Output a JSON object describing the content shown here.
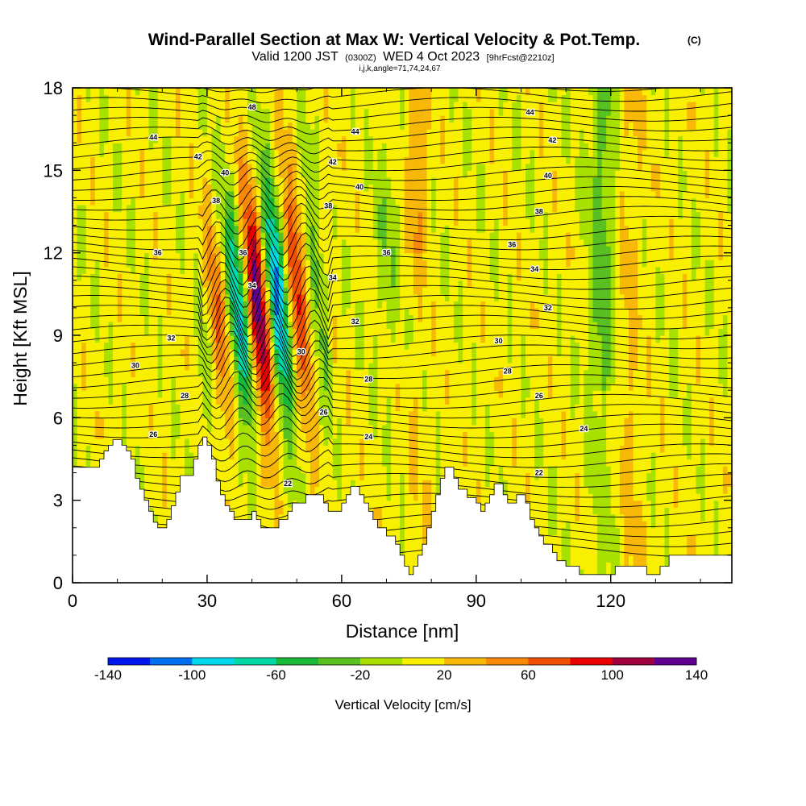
{
  "chart_data": {
    "type": "heatmap",
    "title": "Wind-Parallel Section at Max W: Vertical Velocity & Pot.Temp.",
    "title_mark": "(C)",
    "subtitle_parts": [
      "Valid 1200 JST",
      "(0300Z)",
      "WED 4 Oct 2023",
      "[9hrFcst@2210z]"
    ],
    "subtitle_line2": "i,j,k,angle=71,74,24,67",
    "xlabel": "Distance [nm]",
    "ylabel": "Height [Kft MSL]",
    "xlim": [
      0,
      147
    ],
    "ylim": [
      0,
      18
    ],
    "x_ticks": [
      "0",
      "30",
      "60",
      "90",
      "120"
    ],
    "x_tick_values": [
      0,
      30,
      60,
      90,
      120
    ],
    "y_ticks": [
      "0",
      "3",
      "6",
      "9",
      "12",
      "15",
      "18"
    ],
    "y_tick_values": [
      0,
      3,
      6,
      9,
      12,
      15,
      18
    ],
    "colorbar": {
      "title": "Vertical Velocity [cm/s]",
      "labels": [
        "-140",
        "-100",
        "-60",
        "-20",
        "20",
        "60",
        "100",
        "140"
      ],
      "bins": [
        -140,
        -120,
        -100,
        -80,
        -60,
        -40,
        -20,
        0,
        20,
        40,
        60,
        80,
        100,
        120,
        140
      ],
      "colors": [
        "#0018f0",
        "#0070f0",
        "#00d8f0",
        "#00d8a8",
        "#18b838",
        "#58c020",
        "#a8e000",
        "#f8f000",
        "#f8b808",
        "#f88808",
        "#f05000",
        "#e80000",
        "#a00040",
        "#600090"
      ]
    },
    "theta_labels": [
      {
        "label": "48",
        "x": 40,
        "y": 17.3
      },
      {
        "label": "44",
        "x": 18,
        "y": 16.2
      },
      {
        "label": "44",
        "x": 63,
        "y": 16.4
      },
      {
        "label": "44",
        "x": 102,
        "y": 17.1
      },
      {
        "label": "42",
        "x": 28,
        "y": 15.5
      },
      {
        "label": "42",
        "x": 58,
        "y": 15.3
      },
      {
        "label": "42",
        "x": 107,
        "y": 16.1
      },
      {
        "label": "40",
        "x": 34,
        "y": 14.9
      },
      {
        "label": "40",
        "x": 64,
        "y": 14.4
      },
      {
        "label": "40",
        "x": 106,
        "y": 14.8
      },
      {
        "label": "38",
        "x": 32,
        "y": 13.9
      },
      {
        "label": "38",
        "x": 57,
        "y": 13.7
      },
      {
        "label": "38",
        "x": 104,
        "y": 13.5
      },
      {
        "label": "36",
        "x": 19,
        "y": 12.0
      },
      {
        "label": "36",
        "x": 38,
        "y": 12.0
      },
      {
        "label": "36",
        "x": 70,
        "y": 12.0
      },
      {
        "label": "36",
        "x": 98,
        "y": 12.3
      },
      {
        "label": "34",
        "x": 40,
        "y": 10.8
      },
      {
        "label": "34",
        "x": 58,
        "y": 11.1
      },
      {
        "label": "34",
        "x": 103,
        "y": 11.4
      },
      {
        "label": "32",
        "x": 22,
        "y": 8.9
      },
      {
        "label": "32",
        "x": 63,
        "y": 9.5
      },
      {
        "label": "32",
        "x": 106,
        "y": 10.0
      },
      {
        "label": "30",
        "x": 14,
        "y": 7.9
      },
      {
        "label": "30",
        "x": 51,
        "y": 8.4
      },
      {
        "label": "30",
        "x": 95,
        "y": 8.8
      },
      {
        "label": "28",
        "x": 25,
        "y": 6.8
      },
      {
        "label": "28",
        "x": 66,
        "y": 7.4
      },
      {
        "label": "28",
        "x": 97,
        "y": 7.7
      },
      {
        "label": "26",
        "x": 18,
        "y": 5.4
      },
      {
        "label": "26",
        "x": 56,
        "y": 6.2
      },
      {
        "label": "26",
        "x": 104,
        "y": 6.8
      },
      {
        "label": "24",
        "x": 66,
        "y": 5.3
      },
      {
        "label": "24",
        "x": 114,
        "y": 5.6
      },
      {
        "label": "22",
        "x": 48,
        "y": 3.6
      },
      {
        "label": "22",
        "x": 104,
        "y": 4.0
      }
    ],
    "terrain": [
      [
        0,
        4.2
      ],
      [
        6,
        4.2
      ],
      [
        6,
        4.5
      ],
      [
        7,
        4.5
      ],
      [
        7,
        4.8
      ],
      [
        8,
        4.8
      ],
      [
        8,
        5.0
      ],
      [
        9,
        5.0
      ],
      [
        9,
        5.2
      ],
      [
        11,
        5.2
      ],
      [
        11,
        5.0
      ],
      [
        12,
        5.0
      ],
      [
        12,
        4.8
      ],
      [
        13,
        4.8
      ],
      [
        13,
        4.5
      ],
      [
        14,
        4.5
      ],
      [
        14,
        3.8
      ],
      [
        15,
        3.8
      ],
      [
        15,
        3.4
      ],
      [
        16,
        3.4
      ],
      [
        16,
        3.0
      ],
      [
        17,
        3.0
      ],
      [
        17,
        2.6
      ],
      [
        18,
        2.6
      ],
      [
        18,
        2.2
      ],
      [
        19,
        2.2
      ],
      [
        19,
        2.0
      ],
      [
        21,
        2.0
      ],
      [
        21,
        2.3
      ],
      [
        22,
        2.3
      ],
      [
        22,
        2.8
      ],
      [
        23,
        2.8
      ],
      [
        23,
        3.3
      ],
      [
        24,
        3.3
      ],
      [
        24,
        3.9
      ],
      [
        27,
        3.9
      ],
      [
        27,
        4.5
      ],
      [
        28,
        4.5
      ],
      [
        28,
        5.0
      ],
      [
        29,
        5.0
      ],
      [
        29,
        5.3
      ],
      [
        30,
        5.3
      ],
      [
        30,
        5.0
      ],
      [
        31,
        5.0
      ],
      [
        31,
        4.5
      ],
      [
        32,
        4.5
      ],
      [
        32,
        3.7
      ],
      [
        33,
        3.7
      ],
      [
        33,
        3.2
      ],
      [
        34,
        3.2
      ],
      [
        34,
        2.8
      ],
      [
        35,
        2.8
      ],
      [
        35,
        2.6
      ],
      [
        36,
        2.6
      ],
      [
        36,
        2.3
      ],
      [
        40,
        2.3
      ],
      [
        40,
        2.6
      ],
      [
        41,
        2.6
      ],
      [
        41,
        2.3
      ],
      [
        42,
        2.3
      ],
      [
        42,
        2.0
      ],
      [
        46,
        2.0
      ],
      [
        46,
        2.3
      ],
      [
        48,
        2.3
      ],
      [
        48,
        2.6
      ],
      [
        49,
        2.6
      ],
      [
        49,
        2.9
      ],
      [
        52,
        2.9
      ],
      [
        52,
        3.2
      ],
      [
        56,
        3.2
      ],
      [
        56,
        2.9
      ],
      [
        57,
        2.9
      ],
      [
        57,
        2.6
      ],
      [
        60,
        2.6
      ],
      [
        60,
        2.9
      ],
      [
        61,
        2.9
      ],
      [
        61,
        3.2
      ],
      [
        62,
        3.2
      ],
      [
        62,
        3.5
      ],
      [
        64,
        3.5
      ],
      [
        64,
        3.2
      ],
      [
        65,
        3.2
      ],
      [
        65,
        2.9
      ],
      [
        66,
        2.9
      ],
      [
        66,
        2.6
      ],
      [
        67,
        2.6
      ],
      [
        67,
        2.3
      ],
      [
        68,
        2.3
      ],
      [
        68,
        2.0
      ],
      [
        70,
        2.0
      ],
      [
        70,
        1.7
      ],
      [
        72,
        1.7
      ],
      [
        72,
        1.4
      ],
      [
        73,
        1.4
      ],
      [
        73,
        1.0
      ],
      [
        74,
        1.0
      ],
      [
        74,
        0.6
      ],
      [
        75,
        0.6
      ],
      [
        75,
        0.3
      ],
      [
        76,
        0.3
      ],
      [
        76,
        0.6
      ],
      [
        77,
        0.6
      ],
      [
        77,
        1.0
      ],
      [
        78,
        1.0
      ],
      [
        78,
        1.4
      ],
      [
        79,
        1.4
      ],
      [
        79,
        2.0
      ],
      [
        80,
        2.0
      ],
      [
        80,
        2.6
      ],
      [
        81,
        2.6
      ],
      [
        81,
        3.2
      ],
      [
        82,
        3.2
      ],
      [
        82,
        3.8
      ],
      [
        83,
        3.8
      ],
      [
        83,
        4.2
      ],
      [
        85,
        4.2
      ],
      [
        85,
        3.8
      ],
      [
        86,
        3.8
      ],
      [
        86,
        3.4
      ],
      [
        88,
        3.4
      ],
      [
        88,
        3.1
      ],
      [
        90,
        3.1
      ],
      [
        90,
        2.9
      ],
      [
        91,
        2.9
      ],
      [
        91,
        2.6
      ],
      [
        92,
        2.6
      ],
      [
        92,
        2.9
      ],
      [
        93,
        2.9
      ],
      [
        93,
        3.2
      ],
      [
        94,
        3.2
      ],
      [
        94,
        3.6
      ],
      [
        96,
        3.6
      ],
      [
        96,
        3.2
      ],
      [
        97,
        3.2
      ],
      [
        97,
        2.9
      ],
      [
        99,
        2.9
      ],
      [
        99,
        3.2
      ],
      [
        101,
        3.2
      ],
      [
        101,
        2.9
      ],
      [
        102,
        2.9
      ],
      [
        102,
        2.3
      ],
      [
        103,
        2.3
      ],
      [
        103,
        2.0
      ],
      [
        104,
        2.0
      ],
      [
        104,
        1.7
      ],
      [
        105,
        1.7
      ],
      [
        105,
        1.4
      ],
      [
        107,
        1.4
      ],
      [
        107,
        1.1
      ],
      [
        108,
        1.1
      ],
      [
        108,
        0.8
      ],
      [
        110,
        0.8
      ],
      [
        110,
        0.6
      ],
      [
        113,
        0.6
      ],
      [
        113,
        0.3
      ],
      [
        121,
        0.3
      ],
      [
        121,
        0.6
      ],
      [
        128,
        0.6
      ],
      [
        128,
        0.3
      ],
      [
        131,
        0.3
      ],
      [
        131,
        0.6
      ],
      [
        133,
        0.6
      ],
      [
        133,
        1.0
      ],
      [
        147,
        1.0
      ]
    ]
  }
}
